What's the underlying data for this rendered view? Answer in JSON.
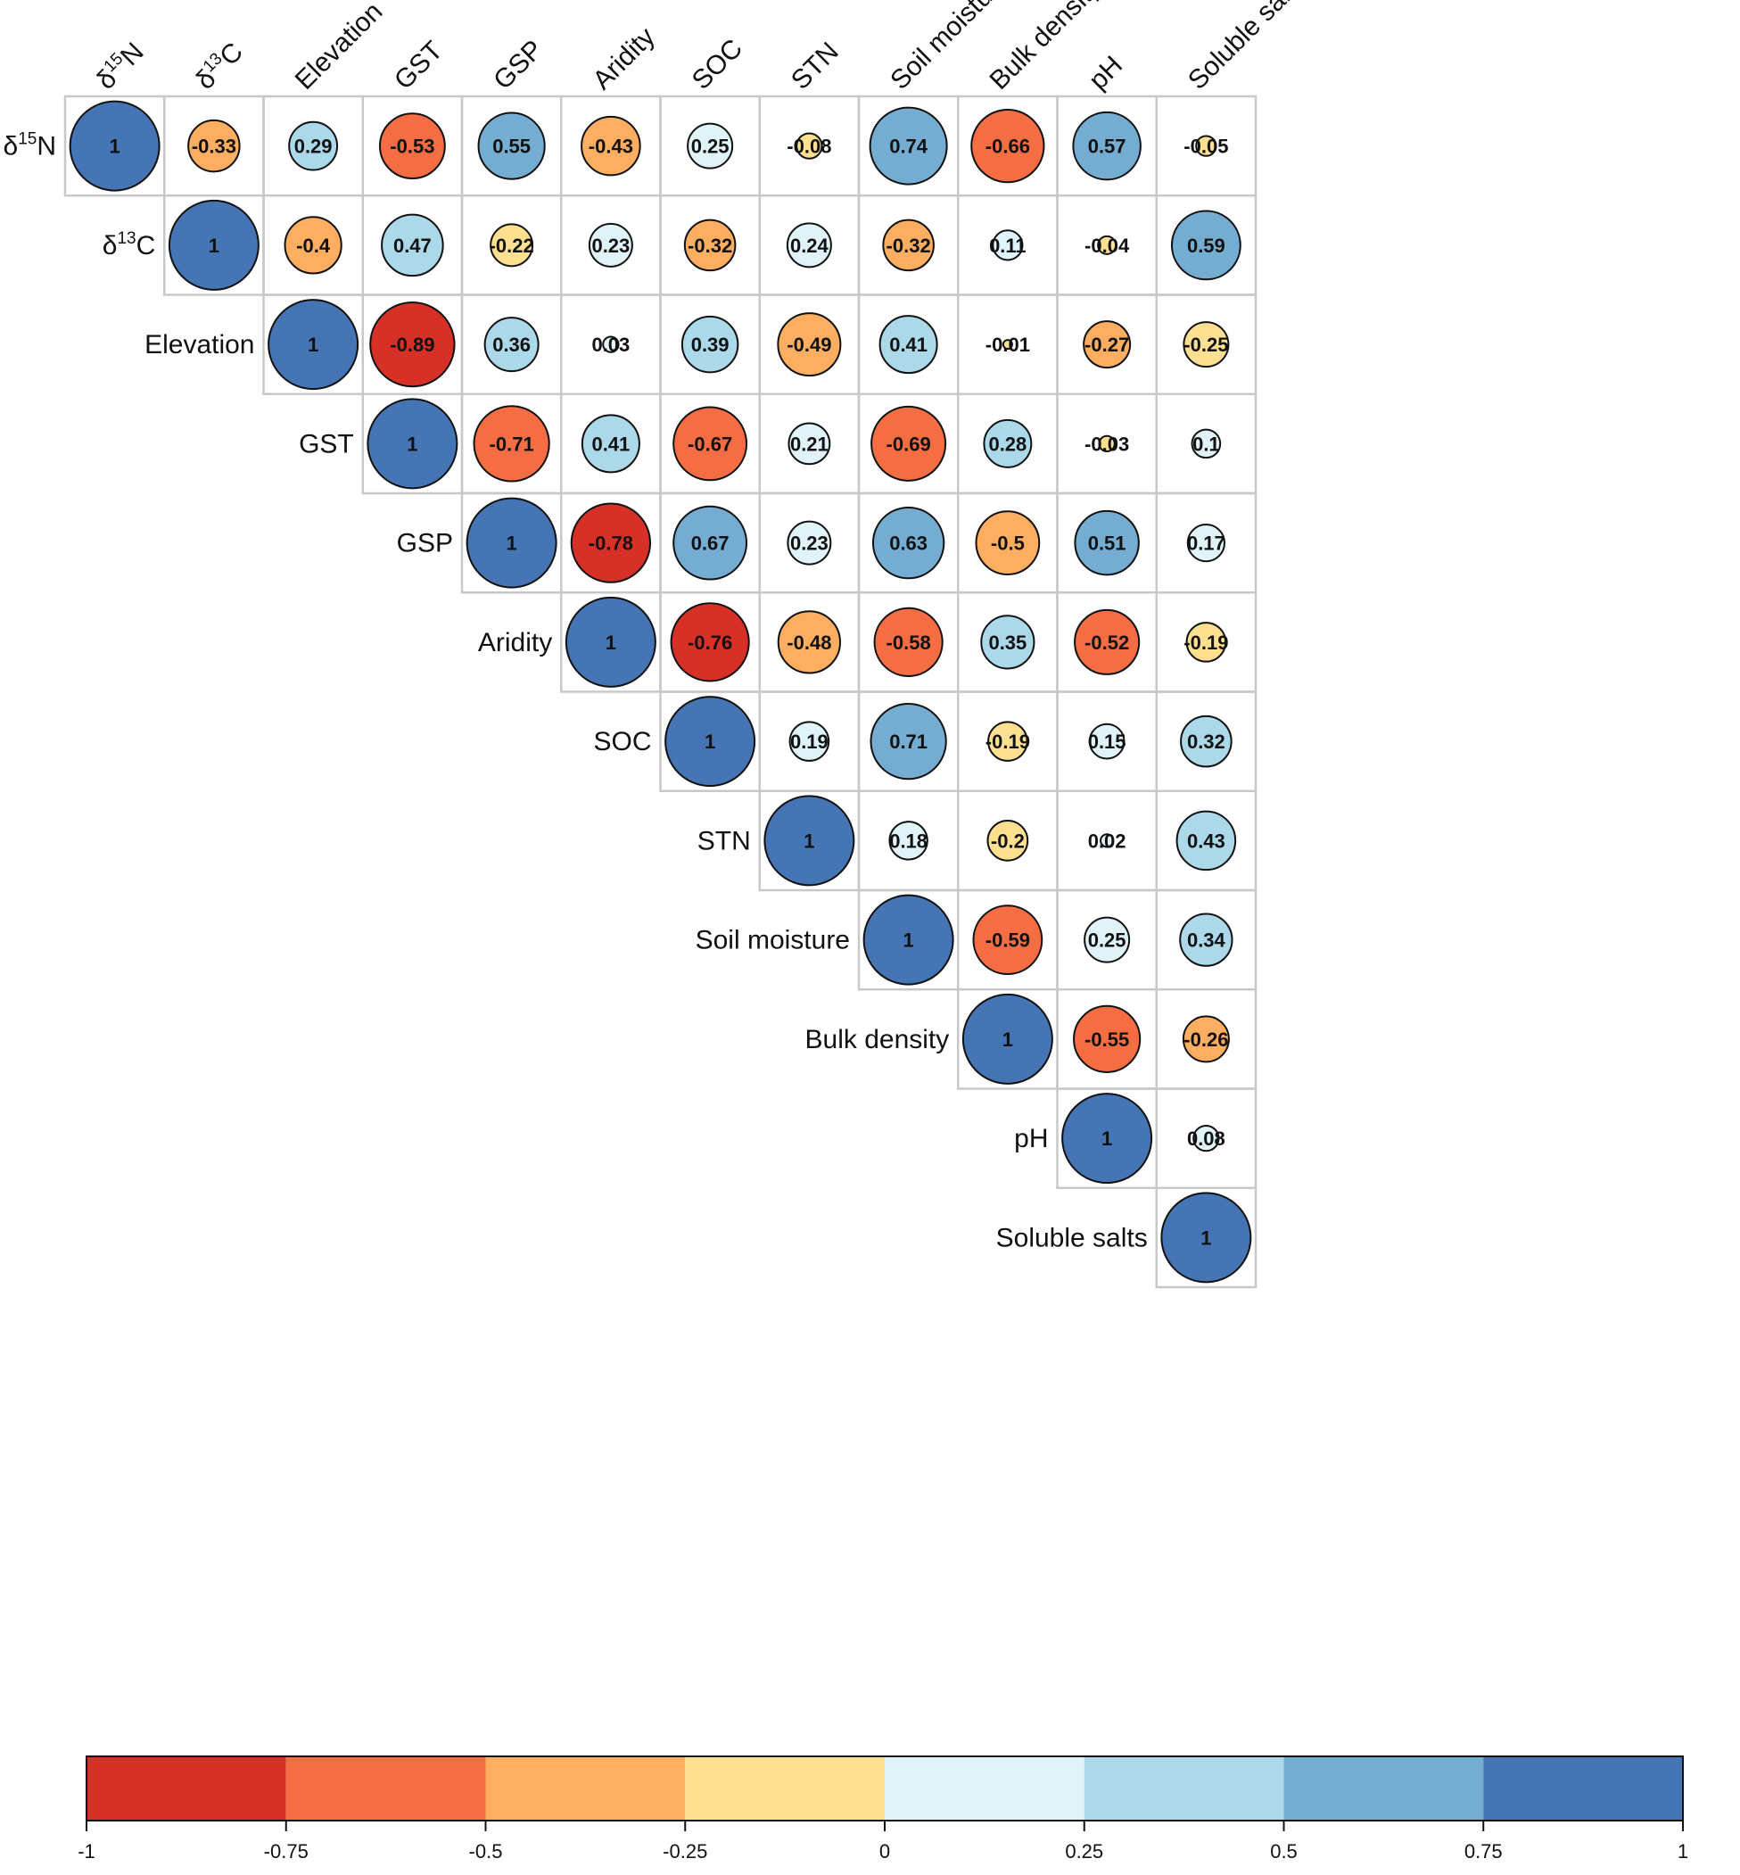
{
  "chart_data": {
    "type": "heatmap",
    "subtype": "correlation-matrix-upper-circles",
    "variables": [
      {
        "base": "δ",
        "sup": "15",
        "tail": "N"
      },
      {
        "base": "δ",
        "sup": "13",
        "tail": "C"
      },
      {
        "base": "Elevation"
      },
      {
        "base": "GST"
      },
      {
        "base": "GSP"
      },
      {
        "base": "Aridity"
      },
      {
        "base": "SOC"
      },
      {
        "base": "STN"
      },
      {
        "base": "Soil moisture"
      },
      {
        "base": "Bulk density"
      },
      {
        "base": "pH"
      },
      {
        "base": "Soluble salts"
      }
    ],
    "rows": [
      [
        1,
        -0.33,
        0.29,
        -0.53,
        0.55,
        -0.43,
        0.25,
        -0.08,
        0.74,
        -0.66,
        0.57,
        -0.05
      ],
      [
        1,
        -0.4,
        0.47,
        -0.22,
        0.23,
        -0.32,
        0.24,
        -0.32,
        0.11,
        -0.04,
        0.59
      ],
      [
        1,
        -0.89,
        0.36,
        0.03,
        0.39,
        -0.49,
        0.41,
        -0.01,
        -0.27,
        -0.25
      ],
      [
        1,
        -0.71,
        0.41,
        -0.67,
        0.21,
        -0.69,
        0.28,
        -0.03,
        0.1
      ],
      [
        1,
        -0.78,
        0.67,
        0.23,
        0.63,
        -0.5,
        0.51,
        0.17
      ],
      [
        1,
        -0.76,
        -0.48,
        -0.58,
        0.35,
        -0.52,
        -0.19
      ],
      [
        1,
        0.19,
        0.71,
        -0.19,
        0.15,
        0.32
      ],
      [
        1,
        0.18,
        -0.2,
        0.02,
        0.43
      ],
      [
        1,
        -0.59,
        0.25,
        0.34
      ],
      [
        1,
        -0.55,
        -0.26
      ],
      [
        1,
        0.08
      ],
      [
        1
      ]
    ],
    "legend": {
      "bins": [
        -1,
        -0.75,
        -0.5,
        -0.25,
        0,
        0.25,
        0.5,
        0.75,
        1
      ],
      "colors": [
        "#d73027",
        "#f46d43",
        "#fdae61",
        "#fee090",
        "#e0f3f8",
        "#abd9e9",
        "#74add1",
        "#4575b4"
      ],
      "tick_labels": [
        "-1",
        "-0.75",
        "-0.5",
        "-0.25",
        "0",
        "0.25",
        "0.5",
        "0.75",
        "1"
      ]
    }
  }
}
